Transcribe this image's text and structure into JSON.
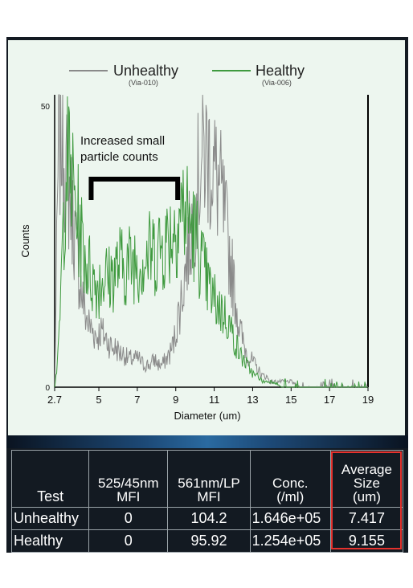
{
  "chart_data": {
    "type": "line",
    "xlabel": "Diameter (um)",
    "ylabel": "Counts",
    "xlim": [
      2.7,
      19
    ],
    "ylim": [
      0,
      50
    ],
    "x_ticks": [
      "2.7",
      "5",
      "7",
      "9",
      "11",
      "13",
      "15",
      "17",
      "19"
    ],
    "x_tick_values": [
      2.7,
      5,
      7,
      9,
      11,
      13,
      15,
      17,
      19
    ],
    "y_ticks": [
      "0",
      "50"
    ],
    "y_tick_values": [
      0,
      50
    ],
    "legend_position": "top",
    "annotation": {
      "text_line1": "Increased small",
      "text_line2": "particle counts",
      "bracket_from": 4.6,
      "bracket_to": 9.1,
      "bracket_level": 37
    },
    "series": [
      {
        "name": "Unhealthy",
        "subname": "(Via-010)",
        "color": "#8a8a8a",
        "x": [
          2.7,
          2.9,
          3.1,
          3.3,
          3.5,
          3.7,
          3.9,
          4.1,
          4.3,
          4.5,
          4.7,
          4.9,
          5.1,
          5.3,
          5.5,
          5.7,
          5.9,
          6.1,
          6.3,
          6.5,
          6.7,
          6.9,
          7.1,
          7.3,
          7.5,
          7.7,
          7.9,
          8.1,
          8.3,
          8.5,
          8.7,
          8.9,
          9.1,
          9.3,
          9.5,
          9.7,
          9.9,
          10.1,
          10.3,
          10.5,
          10.7,
          10.9,
          11.1,
          11.3,
          11.5,
          11.7,
          11.9,
          12.1,
          12.3,
          12.5,
          12.7,
          12.9,
          13.1,
          13.3,
          13.5,
          13.7,
          13.9,
          14.1,
          14.5,
          15,
          15.5,
          16,
          16.5,
          17,
          17.5,
          18,
          18.5,
          19
        ],
        "y": [
          0,
          42,
          46,
          38,
          34,
          29,
          22,
          17,
          13,
          11,
          10,
          9,
          10,
          9,
          8,
          7,
          7,
          6,
          6,
          5,
          5,
          5,
          5,
          4,
          4,
          4,
          5,
          4,
          4,
          5,
          6,
          8,
          12,
          16,
          21,
          26,
          30,
          35,
          40,
          42,
          41,
          40,
          37,
          35,
          31,
          26,
          21,
          16,
          11,
          8,
          6,
          5,
          4,
          3,
          2,
          2,
          1,
          1,
          1,
          1,
          0,
          0,
          0,
          0,
          0,
          0,
          0,
          0
        ]
      },
      {
        "name": "Healthy",
        "subname": "(Via-006)",
        "color": "#3f9a3f",
        "x": [
          2.7,
          2.9,
          3.1,
          3.3,
          3.5,
          3.7,
          3.9,
          4.1,
          4.3,
          4.5,
          4.7,
          4.9,
          5.1,
          5.3,
          5.5,
          5.7,
          5.9,
          6.1,
          6.3,
          6.5,
          6.7,
          6.9,
          7.1,
          7.3,
          7.5,
          7.7,
          7.9,
          8.1,
          8.3,
          8.5,
          8.7,
          8.9,
          9.1,
          9.3,
          9.5,
          9.7,
          9.9,
          10.1,
          10.3,
          10.5,
          10.7,
          10.9,
          11.1,
          11.3,
          11.5,
          11.7,
          11.9,
          12.1,
          12.3,
          12.5,
          12.7,
          12.9,
          13.1,
          13.3,
          13.5,
          13.7,
          13.9,
          14.1,
          14.5,
          15,
          15.5,
          16,
          16.5,
          17,
          17.5,
          18,
          18.5,
          19
        ],
        "y": [
          0,
          6,
          24,
          40,
          38,
          34,
          30,
          26,
          23,
          21,
          19,
          18,
          19,
          20,
          19,
          20,
          21,
          22,
          21,
          22,
          22,
          23,
          22,
          23,
          23,
          24,
          24,
          25,
          25,
          26,
          27,
          28,
          30,
          32,
          31,
          30,
          28,
          26,
          23,
          20,
          18,
          16,
          15,
          14,
          13,
          12,
          10,
          8,
          6,
          5,
          4,
          3,
          2,
          2,
          1,
          1,
          1,
          1,
          0,
          0,
          0,
          0,
          0,
          0,
          0,
          0,
          0,
          0
        ]
      }
    ]
  },
  "table": {
    "headers": {
      "test": "Test",
      "c1_line1": "525/45nm",
      "c1_line2": "MFI",
      "c2_line1": "561nm/LP",
      "c2_line2": "MFI",
      "c3_line1": "Conc.",
      "c3_line2": "(/ml)",
      "c4_line1": "Average",
      "c4_line2": "Size",
      "c4_line3": "(um)"
    },
    "rows": [
      {
        "test": "Unhealthy",
        "mfi525": "0",
        "mfi561": "104.2",
        "conc": "1.646e+05",
        "avg": "7.417"
      },
      {
        "test": "Healthy",
        "mfi525": "0",
        "mfi561": "95.92",
        "conc": "1.254e+05",
        "avg": "9.155"
      }
    ],
    "highlight_color": "#e5322d"
  }
}
